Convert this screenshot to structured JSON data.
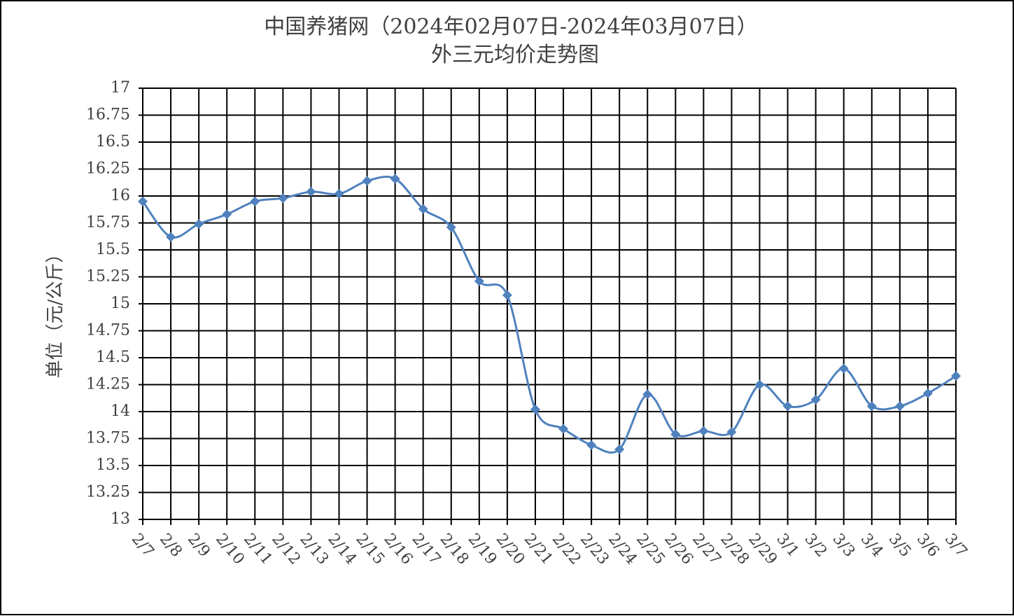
{
  "chart_data": {
    "type": "line",
    "title": "中国养猪网（2024年02月07日-2024年03月07日）",
    "subtitle": "外三元均价走势图",
    "y_label": "单位（元/公斤）",
    "categories": [
      "2/7",
      "2/8",
      "2/9",
      "2/10",
      "2/11",
      "2/12",
      "2/13",
      "2/14",
      "2/15",
      "2/16",
      "2/17",
      "2/18",
      "2/19",
      "2/20",
      "2/21",
      "2/22",
      "2/23",
      "2/24",
      "2/25",
      "2/26",
      "2/27",
      "2/28",
      "2/29",
      "3/1",
      "3/2",
      "3/3",
      "3/4",
      "3/5",
      "3/6",
      "3/7"
    ],
    "values": [
      15.95,
      15.62,
      15.74,
      15.83,
      15.95,
      15.98,
      16.04,
      16.02,
      16.14,
      16.16,
      15.88,
      15.71,
      15.21,
      15.08,
      14.02,
      13.84,
      13.69,
      13.65,
      14.16,
      13.79,
      13.82,
      13.81,
      14.25,
      14.05,
      14.11,
      14.4,
      14.05,
      14.05,
      14.17,
      14.33
    ],
    "color": "#4f81bd",
    "ylim": [
      13,
      17
    ],
    "yticks": [
      13,
      13.25,
      13.5,
      13.75,
      14,
      14.25,
      14.5,
      14.75,
      15,
      15.25,
      15.5,
      15.75,
      16,
      16.25,
      16.5,
      16.75,
      17
    ],
    "grid": true
  }
}
